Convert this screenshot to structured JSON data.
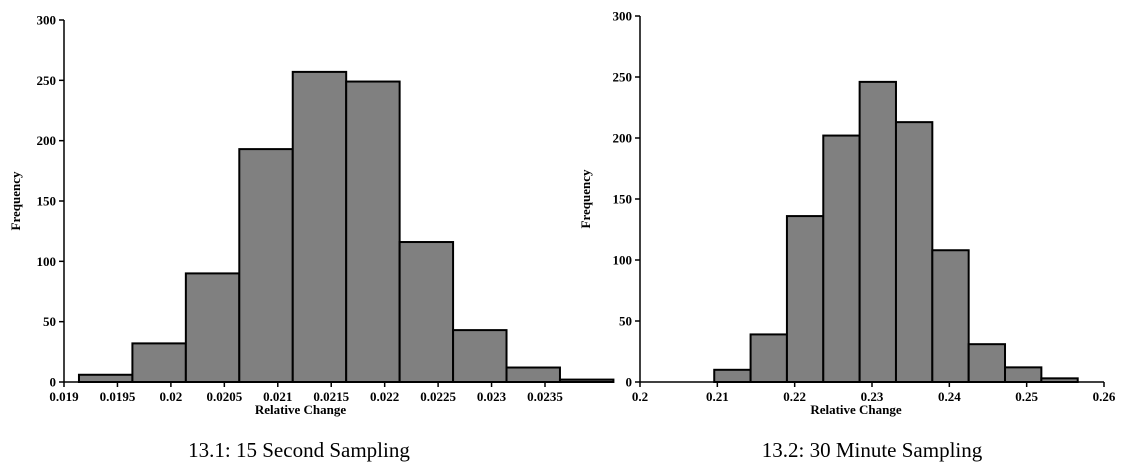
{
  "chart_data": [
    {
      "type": "bar",
      "caption": "13.1: 15 Second Sampling",
      "xlabel": "Relative Change",
      "ylabel": "Frequency",
      "xlim": [
        0.019,
        0.0235
      ],
      "ylim": [
        0,
        300
      ],
      "x_ticks": [
        "0.019",
        "0.0195",
        "0.02",
        "0.0205",
        "0.021",
        "0.0215",
        "0.022",
        "0.0225",
        "0.023",
        "0.0235"
      ],
      "y_ticks": [
        "0",
        "50",
        "100",
        "150",
        "200",
        "250",
        "300"
      ],
      "bins": [
        {
          "x0": 0.01914,
          "x1": 0.01964,
          "value": 6
        },
        {
          "x0": 0.01964,
          "x1": 0.02014,
          "value": 32
        },
        {
          "x0": 0.02014,
          "x1": 0.02064,
          "value": 90
        },
        {
          "x0": 0.02064,
          "x1": 0.02114,
          "value": 193
        },
        {
          "x0": 0.02114,
          "x1": 0.02164,
          "value": 257
        },
        {
          "x0": 0.02164,
          "x1": 0.02214,
          "value": 249
        },
        {
          "x0": 0.02214,
          "x1": 0.02264,
          "value": 116
        },
        {
          "x0": 0.02264,
          "x1": 0.02314,
          "value": 43
        },
        {
          "x0": 0.02314,
          "x1": 0.02364,
          "value": 12
        },
        {
          "x0": 0.02364,
          "x1": 0.02414,
          "value": 2
        }
      ],
      "bar_color": "#808080"
    },
    {
      "type": "bar",
      "caption": "13.2: 30 Minute Sampling",
      "xlabel": "Relative Change",
      "ylabel": "Frequency",
      "xlim": [
        0.2,
        0.26
      ],
      "ylim": [
        0,
        300
      ],
      "x_ticks": [
        "0.2",
        "0.21",
        "0.22",
        "0.23",
        "0.24",
        "0.25",
        "0.26"
      ],
      "y_ticks": [
        "0",
        "50",
        "100",
        "150",
        "200",
        "250",
        "300"
      ],
      "bins": [
        {
          "x0": 0.2096,
          "x1": 0.2143,
          "value": 10
        },
        {
          "x0": 0.2143,
          "x1": 0.219,
          "value": 39
        },
        {
          "x0": 0.219,
          "x1": 0.2237,
          "value": 136
        },
        {
          "x0": 0.2237,
          "x1": 0.2284,
          "value": 202
        },
        {
          "x0": 0.2284,
          "x1": 0.2331,
          "value": 246
        },
        {
          "x0": 0.2331,
          "x1": 0.2378,
          "value": 213
        },
        {
          "x0": 0.2378,
          "x1": 0.2425,
          "value": 108
        },
        {
          "x0": 0.2425,
          "x1": 0.2472,
          "value": 31
        },
        {
          "x0": 0.2472,
          "x1": 0.2519,
          "value": 12
        },
        {
          "x0": 0.2519,
          "x1": 0.2566,
          "value": 3
        }
      ],
      "bar_color": "#808080"
    }
  ]
}
